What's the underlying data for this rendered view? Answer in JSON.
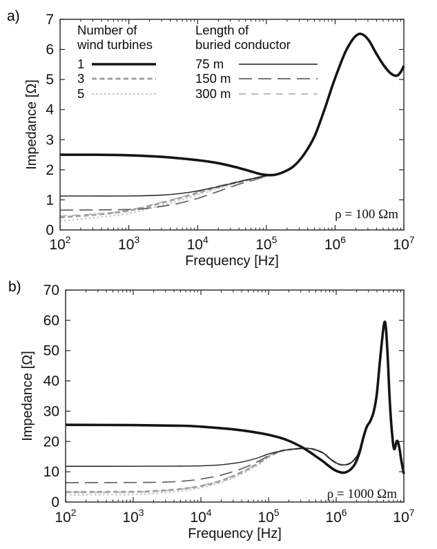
{
  "figure": {
    "background": "#ffffff",
    "axis_color": "#222222"
  },
  "legend": {
    "groups": [
      {
        "title": "Number of\nwind turbines",
        "items": [
          {
            "label": "1",
            "series": "turbines-1"
          },
          {
            "label": "3",
            "series": "turbines-3"
          },
          {
            "label": "5",
            "series": "turbines-5"
          }
        ]
      },
      {
        "title": "Length of\nburied conductor",
        "items": [
          {
            "label": "75 m",
            "series": "length-75m"
          },
          {
            "label": "150 m",
            "series": "length-150m"
          },
          {
            "label": "300 m",
            "series": "length-300m"
          }
        ]
      }
    ]
  },
  "chart_data": [
    {
      "type": "line",
      "panel_label": "a)",
      "xlabel": "Frequency [Hz]",
      "ylabel": "Impedance [Ω]",
      "x_scale": "log",
      "x_log_range": [
        2,
        7
      ],
      "y_range": [
        0,
        7
      ],
      "y_ticks": [
        0,
        1,
        2,
        3,
        4,
        5,
        6,
        7
      ],
      "x_ticks": [
        {
          "base": "10",
          "exp": "2"
        },
        {
          "base": "10",
          "exp": "3"
        },
        {
          "base": "10",
          "exp": "4"
        },
        {
          "base": "10",
          "exp": "5"
        },
        {
          "base": "10",
          "exp": "6"
        },
        {
          "base": "10",
          "exp": "7"
        }
      ],
      "annotation": "ρ = 100 Ωm",
      "grid": false,
      "legend_position": "top-inside",
      "common_tail": [
        [
          130000,
          1.83
        ],
        [
          180000,
          1.93
        ],
        [
          250000,
          2.12
        ],
        [
          350000,
          2.5
        ],
        [
          500000,
          3.1
        ],
        [
          700000,
          4.0
        ],
        [
          900000,
          4.75
        ],
        [
          1100000,
          5.3
        ],
        [
          1400000,
          5.9
        ],
        [
          1700000,
          6.25
        ],
        [
          2000000,
          6.45
        ],
        [
          2300000,
          6.52
        ],
        [
          2700000,
          6.45
        ],
        [
          3200000,
          6.25
        ],
        [
          4000000,
          5.85
        ],
        [
          5000000,
          5.5
        ],
        [
          6000000,
          5.27
        ],
        [
          7000000,
          5.15
        ],
        [
          8000000,
          5.13
        ],
        [
          9000000,
          5.25
        ],
        [
          10000000,
          5.45
        ]
      ],
      "series": [
        {
          "id": "length-300m",
          "name": "300 m buried conductor",
          "color": "#b2b2b2",
          "width": 1.8,
          "dash": "10,8",
          "join_tail": true,
          "points": [
            [
              100,
              0.46
            ],
            [
              500,
              0.56
            ],
            [
              1000,
              0.66
            ],
            [
              3000,
              0.92
            ],
            [
              6000,
              1.1
            ],
            [
              10000,
              1.26
            ],
            [
              20000,
              1.46
            ],
            [
              40000,
              1.62
            ],
            [
              70000,
              1.74
            ],
            [
              100000,
              1.81
            ]
          ]
        },
        {
          "id": "turbines-5",
          "name": "5 wind turbines",
          "color": "#c8c8c8",
          "width": 2.4,
          "dash": "2.5,3.5",
          "join_tail": true,
          "points": [
            [
              100,
              0.3
            ],
            [
              300,
              0.4
            ],
            [
              1000,
              0.55
            ],
            [
              3000,
              0.82
            ],
            [
              6000,
              1.0
            ],
            [
              10000,
              1.17
            ],
            [
              20000,
              1.38
            ],
            [
              40000,
              1.57
            ],
            [
              70000,
              1.7
            ],
            [
              100000,
              1.78
            ]
          ]
        },
        {
          "id": "turbines-3",
          "name": "3 wind turbines",
          "color": "#a2a2a2",
          "width": 3.0,
          "dash": "7,4.5",
          "join_tail": true,
          "points": [
            [
              100,
              0.42
            ],
            [
              300,
              0.5
            ],
            [
              1000,
              0.64
            ],
            [
              3000,
              0.9
            ],
            [
              6000,
              1.08
            ],
            [
              10000,
              1.23
            ],
            [
              20000,
              1.43
            ],
            [
              40000,
              1.6
            ],
            [
              70000,
              1.72
            ],
            [
              100000,
              1.8
            ]
          ]
        },
        {
          "id": "length-150m",
          "name": "150 m buried conductor",
          "color": "#606060",
          "width": 1.7,
          "dash": "19,9",
          "join_tail": true,
          "points": [
            [
              100,
              0.66
            ],
            [
              1000,
              0.68
            ],
            [
              2000,
              0.73
            ],
            [
              5000,
              0.87
            ],
            [
              10000,
              1.05
            ],
            [
              20000,
              1.28
            ],
            [
              40000,
              1.52
            ],
            [
              70000,
              1.68
            ],
            [
              100000,
              1.78
            ]
          ]
        },
        {
          "id": "length-75m",
          "name": "75 m buried conductor",
          "color": "#1e1e1e",
          "width": 1.4,
          "dash": null,
          "join_tail": true,
          "points": [
            [
              100,
              1.13
            ],
            [
              1000,
              1.13
            ],
            [
              3000,
              1.16
            ],
            [
              6000,
              1.22
            ],
            [
              10000,
              1.3
            ],
            [
              20000,
              1.44
            ],
            [
              40000,
              1.6
            ],
            [
              70000,
              1.73
            ],
            [
              100000,
              1.8
            ]
          ]
        },
        {
          "id": "turbines-1",
          "name": "1 wind turbine",
          "color": "#141414",
          "width": 3.6,
          "dash": null,
          "join_tail": true,
          "points": [
            [
              100,
              2.5
            ],
            [
              300,
              2.5
            ],
            [
              1000,
              2.48
            ],
            [
              3000,
              2.43
            ],
            [
              10000,
              2.32
            ],
            [
              20000,
              2.22
            ],
            [
              40000,
              2.06
            ],
            [
              65000,
              1.92
            ],
            [
              90000,
              1.84
            ]
          ]
        }
      ]
    },
    {
      "type": "line",
      "panel_label": "b)",
      "xlabel": "Frequency [Hz]",
      "ylabel": "Impedance [Ω]",
      "x_scale": "log",
      "x_log_range": [
        2,
        7
      ],
      "y_range": [
        0,
        70
      ],
      "y_ticks": [
        0,
        10,
        20,
        30,
        40,
        50,
        60,
        70
      ],
      "x_ticks": [
        {
          "base": "10",
          "exp": "2"
        },
        {
          "base": "10",
          "exp": "3"
        },
        {
          "base": "10",
          "exp": "4"
        },
        {
          "base": "10",
          "exp": "5"
        },
        {
          "base": "10",
          "exp": "6"
        },
        {
          "base": "10",
          "exp": "7"
        }
      ],
      "annotation": "ρ = 1000 Ωm",
      "grid": false,
      "legend_position": "none",
      "common_tail": [
        [
          150000,
          16.8
        ],
        [
          200000,
          17.3
        ],
        [
          300000,
          17.7
        ],
        [
          400000,
          17.7
        ],
        [
          500000,
          17.2
        ],
        [
          650000,
          16.1
        ],
        [
          800000,
          14.4
        ],
        [
          1000000,
          12.9
        ],
        [
          1200000,
          12.3
        ],
        [
          1500000,
          12.5
        ],
        [
          1800000,
          13.7
        ],
        [
          2100000,
          15.9
        ],
        [
          2400000,
          19.8
        ],
        [
          2700000,
          23.6
        ],
        [
          3000000,
          25.5
        ],
        [
          3200000,
          26.8
        ],
        [
          3600000,
          30
        ],
        [
          4000000,
          36
        ],
        [
          4400000,
          46
        ],
        [
          4900000,
          56
        ],
        [
          5200000,
          59.5
        ],
        [
          5450000,
          57
        ],
        [
          5800000,
          47
        ],
        [
          6200000,
          33
        ],
        [
          6700000,
          22.5
        ],
        [
          7200000,
          17.5
        ],
        [
          7900000,
          20.2
        ],
        [
          8500000,
          18.3
        ],
        [
          9200000,
          13.5
        ],
        [
          10000000,
          9.3
        ]
      ],
      "series": [
        {
          "id": "length-300m",
          "name": "300 m buried conductor",
          "color": "#b2b2b2",
          "width": 1.8,
          "dash": "10,8",
          "join_tail": true,
          "points": [
            [
              100,
              3.2
            ],
            [
              1000,
              3.3
            ],
            [
              2000,
              3.55
            ],
            [
              5000,
              4.25
            ],
            [
              10000,
              5.4
            ],
            [
              20000,
              7.2
            ],
            [
              40000,
              10.0
            ],
            [
              70000,
              12.9
            ],
            [
              100000,
              15.2
            ]
          ]
        },
        {
          "id": "turbines-5",
          "name": "5 wind turbines",
          "color": "#c8c8c8",
          "width": 2.4,
          "dash": "2.5,3.5",
          "join_tail": true,
          "points": [
            [
              100,
              2.4
            ],
            [
              1000,
              2.5
            ],
            [
              2000,
              2.8
            ],
            [
              5000,
              3.6
            ],
            [
              10000,
              4.7
            ],
            [
              20000,
              6.5
            ],
            [
              40000,
              9.3
            ],
            [
              70000,
              12.3
            ],
            [
              100000,
              14.7
            ]
          ]
        },
        {
          "id": "turbines-3",
          "name": "3 wind turbines",
          "color": "#a2a2a2",
          "width": 3.0,
          "dash": "7,4.5",
          "join_tail": true,
          "points": [
            [
              100,
              3.3
            ],
            [
              1000,
              3.4
            ],
            [
              2000,
              3.6
            ],
            [
              5000,
              4.3
            ],
            [
              10000,
              5.3
            ],
            [
              20000,
              7.0
            ],
            [
              40000,
              9.8
            ],
            [
              70000,
              12.7
            ],
            [
              100000,
              15.0
            ]
          ]
        },
        {
          "id": "length-150m",
          "name": "150 m buried conductor",
          "color": "#606060",
          "width": 1.7,
          "dash": "19,9",
          "join_tail": true,
          "points": [
            [
              100,
              6.4
            ],
            [
              1000,
              6.45
            ],
            [
              3000,
              6.6
            ],
            [
              6000,
              7.0
            ],
            [
              10000,
              7.6
            ],
            [
              20000,
              8.9
            ],
            [
              40000,
              11.0
            ],
            [
              70000,
              13.4
            ],
            [
              100000,
              15.3
            ]
          ]
        },
        {
          "id": "length-75m",
          "name": "75 m buried conductor",
          "color": "#1e1e1e",
          "width": 1.4,
          "dash": null,
          "join_tail": true,
          "points": [
            [
              100,
              11.8
            ],
            [
              1000,
              11.8
            ],
            [
              5000,
              11.85
            ],
            [
              10000,
              11.95
            ],
            [
              20000,
              12.3
            ],
            [
              40000,
              13.2
            ],
            [
              70000,
              14.6
            ],
            [
              100000,
              15.9
            ]
          ]
        },
        {
          "id": "turbines-1",
          "name": "1 wind turbine",
          "color": "#141414",
          "width": 3.6,
          "dash": null,
          "join_tail": false,
          "points": [
            [
              100,
              25.5
            ],
            [
              1000,
              25.4
            ],
            [
              5000,
              25.2
            ],
            [
              10000,
              24.9
            ],
            [
              30000,
              24.0
            ],
            [
              60000,
              23.1
            ],
            [
              100000,
              22.2
            ],
            [
              150000,
              21.2
            ],
            [
              200000,
              20.2
            ],
            [
              300000,
              18.3
            ],
            [
              400000,
              16.6
            ],
            [
              500000,
              15.1
            ],
            [
              650000,
              13.3
            ],
            [
              800000,
              11.7
            ],
            [
              1000000,
              10.3
            ],
            [
              1300000,
              9.7
            ],
            [
              1600000,
              10.6
            ],
            [
              1900000,
              12.6
            ],
            [
              2200000,
              16.2
            ],
            [
              2500000,
              21.0
            ],
            [
              2800000,
              24.6
            ],
            [
              3000000,
              25.8
            ],
            [
              3200000,
              26.8
            ],
            [
              3600000,
              30
            ],
            [
              4000000,
              36
            ],
            [
              4400000,
              46
            ],
            [
              4900000,
              56
            ],
            [
              5200000,
              59.5
            ],
            [
              5450000,
              57
            ],
            [
              5800000,
              47
            ],
            [
              6200000,
              33
            ],
            [
              6700000,
              22.5
            ],
            [
              7200000,
              17.5
            ],
            [
              7900000,
              20.2
            ],
            [
              8500000,
              18.3
            ],
            [
              9200000,
              13.5
            ],
            [
              10000000,
              9.3
            ]
          ]
        }
      ]
    }
  ]
}
